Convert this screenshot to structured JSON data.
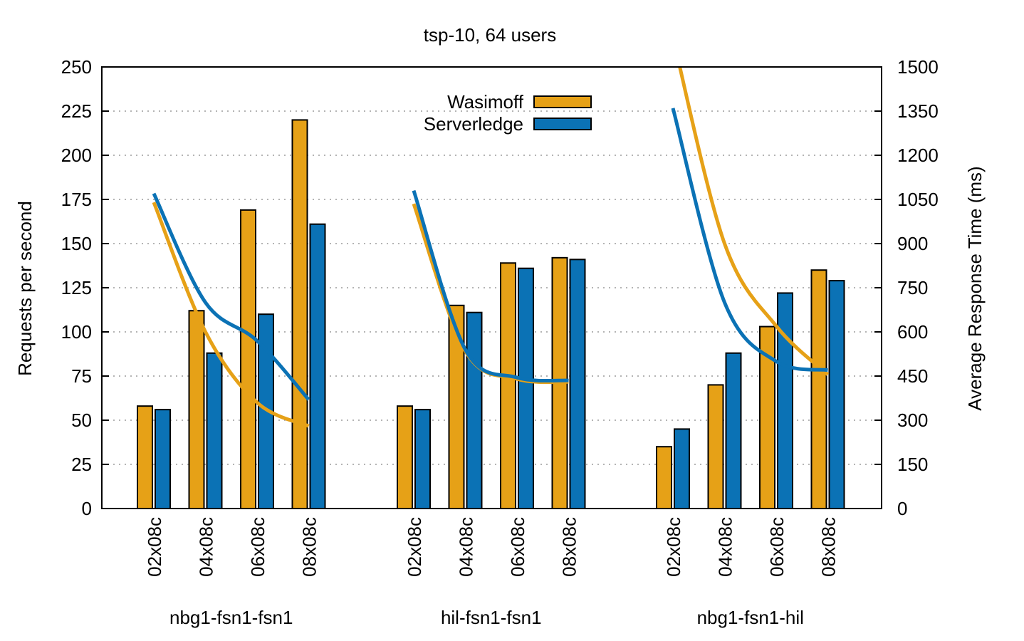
{
  "chart_data": {
    "type": "bar",
    "title": "tsp-10, 64 users",
    "ylabel": "Requests per second",
    "y2label": "Average Response Time (ms)",
    "ylim": [
      0,
      250
    ],
    "y2lim": [
      0,
      1500
    ],
    "yticks": [
      "0",
      "25",
      "50",
      "75",
      "100",
      "125",
      "150",
      "175",
      "200",
      "225",
      "250"
    ],
    "y2ticks": [
      "0",
      "150",
      "300",
      "450",
      "600",
      "750",
      "900",
      "1050",
      "1200",
      "1350",
      "1500"
    ],
    "grid": true,
    "legend_position": "top-center",
    "groups": [
      {
        "label": "nbg1-fsn1-fsn1",
        "categories": [
          "02x08c",
          "04x08c",
          "06x08c",
          "08x08c"
        ],
        "series": [
          {
            "name": "Wasimoff",
            "bars": [
              58,
              112,
              169,
              220
            ],
            "response_ms": [
              1040,
              600,
              360,
              280
            ]
          },
          {
            "name": "Serverledge",
            "bars": [
              56,
              88,
              110,
              161
            ],
            "response_ms": [
              1070,
              700,
              570,
              370
            ]
          }
        ]
      },
      {
        "label": "hil-fsn1-fsn1",
        "categories": [
          "02x08c",
          "04x08c",
          "06x08c",
          "08x08c"
        ],
        "series": [
          {
            "name": "Wasimoff",
            "bars": [
              58,
              115,
              139,
              142
            ],
            "response_ms": [
              1035,
              535,
              440,
              430
            ]
          },
          {
            "name": "Serverledge",
            "bars": [
              56,
              111,
              136,
              141
            ],
            "response_ms": [
              1080,
              540,
              445,
              435
            ]
          }
        ]
      },
      {
        "label": "nbg1-fsn1-hil",
        "categories": [
          "02x08c",
          "04x08c",
          "06x08c",
          "08x08c"
        ],
        "series": [
          {
            "name": "Wasimoff",
            "bars": [
              35,
              70,
              103,
              135
            ],
            "response_ms": [
              1600,
              900,
              620,
              455
            ]
          },
          {
            "name": "Serverledge",
            "bars": [
              45,
              88,
              122,
              129
            ],
            "response_ms": [
              1360,
              700,
              500,
              470
            ]
          }
        ]
      }
    ],
    "colors": {
      "Wasimoff": "#e6a117",
      "Serverledge": "#0b72b5"
    }
  }
}
